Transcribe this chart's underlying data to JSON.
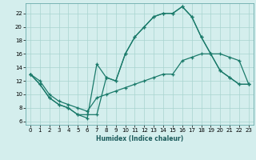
{
  "xlabel": "Humidex (Indice chaleur)",
  "bg_color": "#d4eeed",
  "grid_color": "#a8d4d0",
  "line_color": "#1a7a6a",
  "x_ticks": [
    0,
    1,
    2,
    3,
    4,
    5,
    6,
    7,
    8,
    9,
    10,
    11,
    12,
    13,
    14,
    15,
    16,
    17,
    18,
    19,
    20,
    21,
    22,
    23
  ],
  "y_ticks": [
    6,
    8,
    10,
    12,
    14,
    16,
    18,
    20,
    22
  ],
  "xlim": [
    -0.5,
    23.5
  ],
  "ylim": [
    5.5,
    23.5
  ],
  "curve1_x": [
    0,
    1,
    2,
    3,
    4,
    5,
    6,
    7,
    8,
    9,
    10,
    11,
    12,
    13,
    14,
    15,
    16,
    17,
    18,
    19,
    20,
    21,
    22,
    23
  ],
  "curve1_y": [
    13,
    11.5,
    9.5,
    8.5,
    8,
    7,
    7,
    7,
    12.5,
    12,
    16,
    18.5,
    20,
    21.5,
    22,
    22,
    23,
    21.5,
    18.5,
    16,
    13.5,
    12.5,
    11.5,
    11.5
  ],
  "curve2_x": [
    0,
    1,
    2,
    3,
    4,
    5,
    6,
    7,
    8,
    9,
    10,
    11,
    12,
    13,
    14,
    15,
    16,
    17,
    18,
    19,
    20,
    21,
    22,
    23
  ],
  "curve2_y": [
    13,
    11.5,
    9.5,
    8.5,
    8,
    7,
    6.5,
    14.5,
    12.5,
    12,
    16,
    18.5,
    20,
    21.5,
    22,
    22,
    23,
    21.5,
    18.5,
    16,
    13.5,
    12.5,
    11.5,
    11.5
  ],
  "curve3_x": [
    0,
    1,
    2,
    3,
    4,
    5,
    6,
    7,
    8,
    9,
    10,
    11,
    12,
    13,
    14,
    15,
    16,
    17,
    18,
    19,
    20,
    21,
    22,
    23
  ],
  "curve3_y": [
    13,
    12,
    10,
    9,
    8.5,
    8,
    7.5,
    9.5,
    10,
    10.5,
    11,
    11.5,
    12,
    12.5,
    13,
    13,
    15,
    15.5,
    16,
    16,
    16,
    15.5,
    15,
    11.5
  ],
  "tick_labelsize": 5,
  "xlabel_fontsize": 5.5,
  "lw": 0.9,
  "markersize": 3
}
